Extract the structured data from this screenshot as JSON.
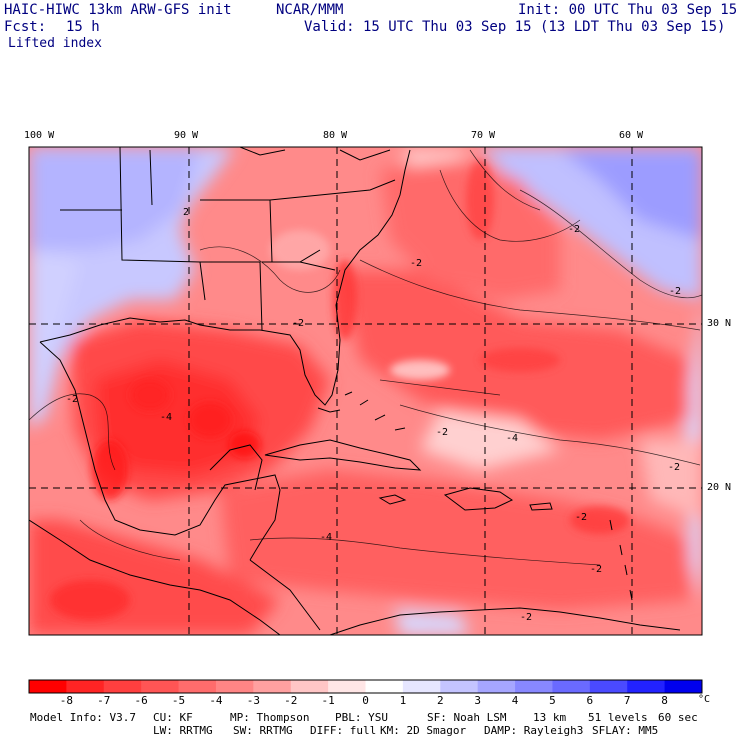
{
  "header": {
    "model": "HAIC-HIWC 13km ARW-GFS init",
    "org": "NCAR/MMM",
    "init": "Init: 00 UTC Thu 03 Sep 15",
    "fcst_label": "Fcst:",
    "fcst_value": "15 h",
    "valid": "Valid: 15 UTC Thu 03 Sep 15 (13 LDT Thu 03 Sep 15)",
    "field": "Lifted index"
  },
  "axes": {
    "lon_labels": [
      "100 W",
      "90 W",
      "80 W",
      "70 W",
      "60 W"
    ],
    "lat_labels": [
      "30 N",
      "20 N"
    ]
  },
  "contour_labels": [
    "2",
    "-2",
    "-2",
    "-2",
    "-2",
    "-2",
    "-2",
    "-2",
    "-2",
    "-4",
    "-4",
    "-4",
    "-2",
    "-2"
  ],
  "colorbar": {
    "labels": [
      "-8",
      "-7",
      "-6",
      "-5",
      "-4",
      "-3",
      "-2",
      "-1",
      "0",
      "1",
      "2",
      "3",
      "4",
      "5",
      "6",
      "7",
      "8"
    ],
    "unit": "°C",
    "colors": [
      "#ff0000",
      "#ff2424",
      "#ff3f3f",
      "#ff5555",
      "#ff6c6c",
      "#ff8585",
      "#ffa0a0",
      "#ffc6c6",
      "#ffe6e6",
      "#ffffff",
      "#e6e6ff",
      "#c4c4ff",
      "#a6a6ff",
      "#8888ff",
      "#6a6aff",
      "#4a4aff",
      "#2222ff",
      "#0000ee"
    ]
  },
  "footer": {
    "line1": [
      "Model Info: V3.7",
      "CU: KF",
      "MP: Thompson",
      "PBL: YSU",
      "SF: Noah LSM",
      "13 km",
      "51 levels",
      "60 sec"
    ],
    "line2": [
      "LW: RRTMG",
      "SW: RRTMG",
      "DIFF: full",
      "KM: 2D Smagor",
      "DAMP: Rayleigh3",
      "SFLAY: MM5"
    ]
  }
}
